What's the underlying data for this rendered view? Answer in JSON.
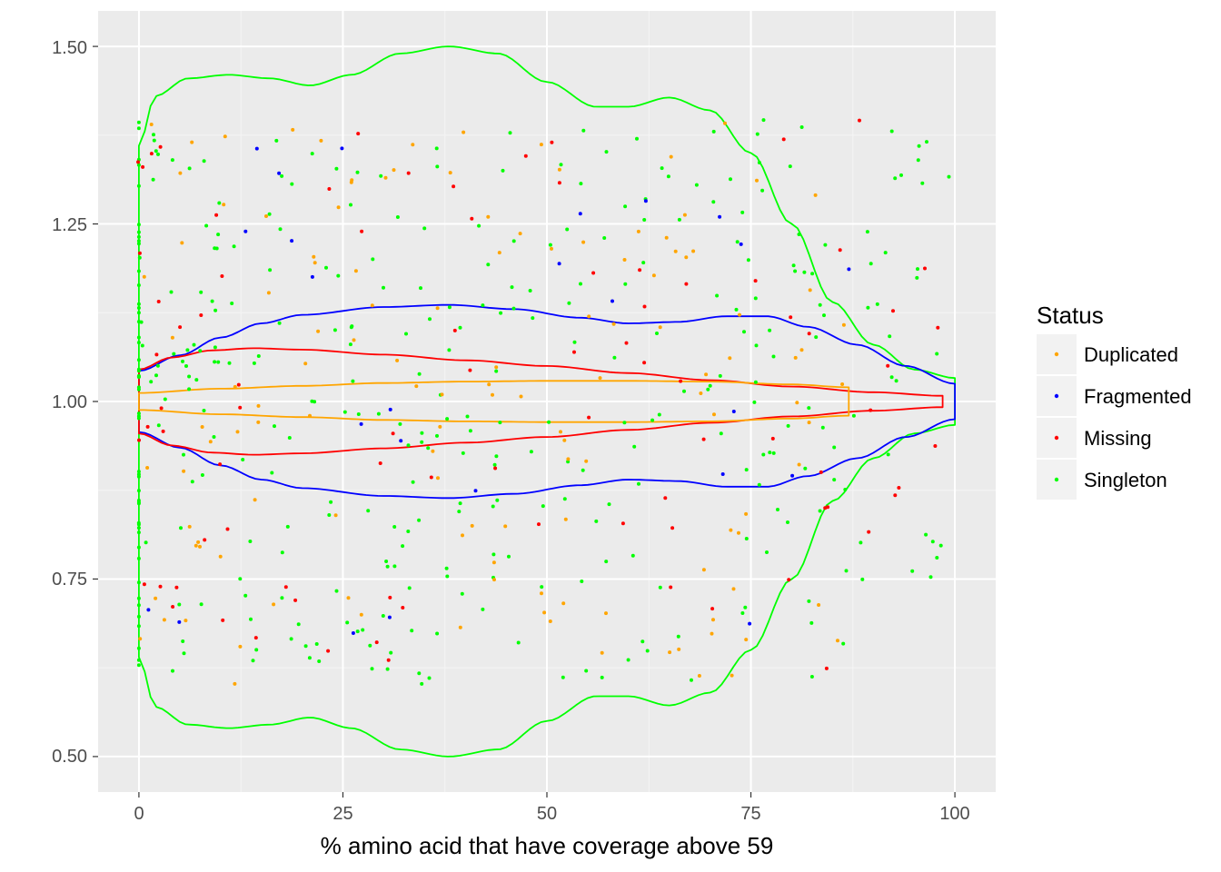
{
  "chart_data": {
    "type": "violin",
    "title": "",
    "xlabel": "% amino acid that have coverage above 59",
    "ylabel": "",
    "xlim": [
      -5,
      105
    ],
    "ylim": [
      0.45,
      1.55
    ],
    "x_ticks": [
      0,
      25,
      50,
      75,
      100
    ],
    "x_tick_labels": [
      "0",
      "25",
      "50",
      "75",
      "100"
    ],
    "y_ticks": [
      0.5,
      0.75,
      1.0,
      1.25,
      1.5
    ],
    "y_tick_labels": [
      "0.50",
      "0.75",
      "1.00",
      "1.25",
      "1.50"
    ],
    "grid": true,
    "panel_background": "#ebebeb",
    "legend": {
      "title": "Status",
      "placement": "right",
      "entries": [
        {
          "label": "Duplicated",
          "color": "#ffa500"
        },
        {
          "label": "Fragmented",
          "color": "#0000ff"
        },
        {
          "label": "Missing",
          "color": "#ff0000"
        },
        {
          "label": "Singleton",
          "color": "#00ff00"
        }
      ]
    },
    "series": [
      {
        "name": "Singleton",
        "color": "#00ff00",
        "x_range": [
          0,
          100
        ],
        "half_width_profile": [
          {
            "x": 0,
            "w": 0.36
          },
          {
            "x": 2,
            "w": 0.43
          },
          {
            "x": 6,
            "w": 0.455
          },
          {
            "x": 11,
            "w": 0.46
          },
          {
            "x": 16,
            "w": 0.455
          },
          {
            "x": 21,
            "w": 0.445
          },
          {
            "x": 26,
            "w": 0.46
          },
          {
            "x": 32,
            "w": 0.49
          },
          {
            "x": 38,
            "w": 0.5
          },
          {
            "x": 44,
            "w": 0.49
          },
          {
            "x": 50,
            "w": 0.45
          },
          {
            "x": 56,
            "w": 0.415
          },
          {
            "x": 60,
            "w": 0.415
          },
          {
            "x": 65,
            "w": 0.428
          },
          {
            "x": 70,
            "w": 0.41
          },
          {
            "x": 75,
            "w": 0.35
          },
          {
            "x": 80,
            "w": 0.25
          },
          {
            "x": 85,
            "w": 0.14
          },
          {
            "x": 90,
            "w": 0.08
          },
          {
            "x": 95,
            "w": 0.045
          },
          {
            "x": 100,
            "w": 0.033
          }
        ],
        "point_count": 360
      },
      {
        "name": "Fragmented",
        "color": "#0000ff",
        "x_range": [
          0,
          100
        ],
        "half_width_profile": [
          {
            "x": 0,
            "w": 0.043
          },
          {
            "x": 5,
            "w": 0.065
          },
          {
            "x": 10,
            "w": 0.09
          },
          {
            "x": 15,
            "w": 0.11
          },
          {
            "x": 20,
            "w": 0.122
          },
          {
            "x": 30,
            "w": 0.133
          },
          {
            "x": 38,
            "w": 0.136
          },
          {
            "x": 46,
            "w": 0.13
          },
          {
            "x": 54,
            "w": 0.118
          },
          {
            "x": 60,
            "w": 0.11
          },
          {
            "x": 66,
            "w": 0.112
          },
          {
            "x": 72,
            "w": 0.12
          },
          {
            "x": 77,
            "w": 0.12
          },
          {
            "x": 82,
            "w": 0.105
          },
          {
            "x": 88,
            "w": 0.08
          },
          {
            "x": 94,
            "w": 0.05
          },
          {
            "x": 100,
            "w": 0.025
          }
        ],
        "point_count": 25
      },
      {
        "name": "Missing",
        "color": "#ff0000",
        "x_range": [
          0,
          98.5
        ],
        "half_width_profile": [
          {
            "x": 0,
            "w": 0.045
          },
          {
            "x": 4,
            "w": 0.062
          },
          {
            "x": 9,
            "w": 0.072
          },
          {
            "x": 14,
            "w": 0.075
          },
          {
            "x": 20,
            "w": 0.073
          },
          {
            "x": 30,
            "w": 0.066
          },
          {
            "x": 40,
            "w": 0.058
          },
          {
            "x": 50,
            "w": 0.05
          },
          {
            "x": 60,
            "w": 0.04
          },
          {
            "x": 70,
            "w": 0.03
          },
          {
            "x": 80,
            "w": 0.021
          },
          {
            "x": 90,
            "w": 0.013
          },
          {
            "x": 98.5,
            "w": 0.008
          }
        ],
        "point_count": 85
      },
      {
        "name": "Duplicated",
        "color": "#ffa500",
        "x_range": [
          0,
          87
        ],
        "half_width_profile": [
          {
            "x": 0,
            "w": 0.012
          },
          {
            "x": 10,
            "w": 0.018
          },
          {
            "x": 20,
            "w": 0.022
          },
          {
            "x": 30,
            "w": 0.026
          },
          {
            "x": 40,
            "w": 0.028
          },
          {
            "x": 50,
            "w": 0.029
          },
          {
            "x": 60,
            "w": 0.029
          },
          {
            "x": 70,
            "w": 0.028
          },
          {
            "x": 80,
            "w": 0.024
          },
          {
            "x": 87,
            "w": 0.02
          }
        ],
        "point_count": 130
      }
    ]
  }
}
